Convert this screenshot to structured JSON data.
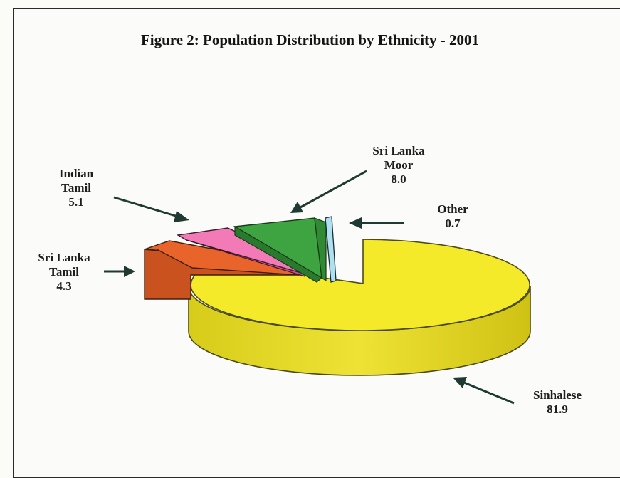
{
  "chart_data": {
    "type": "pie",
    "title": "Figure 2: Population Distribution by Ethnicity - 2001",
    "exploded": true,
    "three_d": true,
    "legend": "none",
    "slices": [
      {
        "label": [
          "Sinhalese"
        ],
        "value": "81.9",
        "color": "#f5ea2a"
      },
      {
        "label": [
          "Sri Lanka",
          "Tamil"
        ],
        "value": "4.3",
        "color": "#e8642a"
      },
      {
        "label": [
          "Indian",
          "Tamil"
        ],
        "value": "5.1",
        "color": "#f27ab6"
      },
      {
        "label": [
          "Sri Lanka",
          "Moor"
        ],
        "value": "8.0",
        "color": "#3ea341"
      },
      {
        "label": [
          "Other"
        ],
        "value": "0.7",
        "color": "#aee0ee"
      }
    ],
    "arrow_color": "#1f3a33"
  }
}
